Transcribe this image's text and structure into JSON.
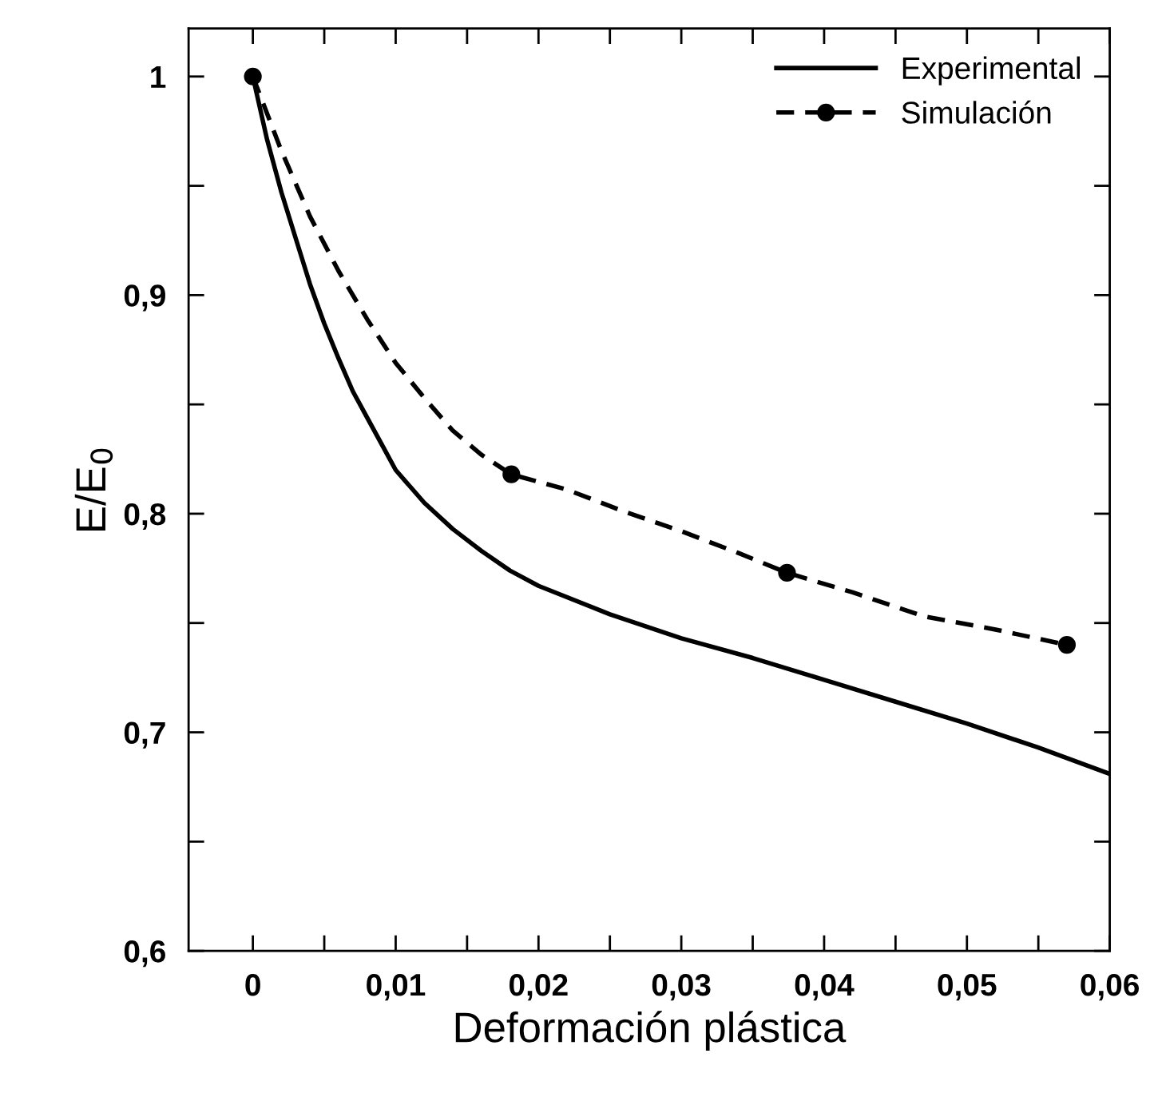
{
  "chart_data": {
    "type": "line",
    "xlabel": "Deformación plástica",
    "ylabel": "E/E$_{0}$",
    "xlim": [
      -0.0045,
      0.06
    ],
    "ylim": [
      0.6,
      1.022
    ],
    "xticks": [
      {
        "value": 0,
        "label": "0"
      },
      {
        "value": 0.005,
        "label": null
      },
      {
        "value": 0.01,
        "label": "0,01"
      },
      {
        "value": 0.015,
        "label": null
      },
      {
        "value": 0.02,
        "label": "0,02"
      },
      {
        "value": 0.025,
        "label": null
      },
      {
        "value": 0.03,
        "label": "0,03"
      },
      {
        "value": 0.035,
        "label": null
      },
      {
        "value": 0.04,
        "label": "0,04"
      },
      {
        "value": 0.045,
        "label": null
      },
      {
        "value": 0.05,
        "label": "0,05"
      },
      {
        "value": 0.055,
        "label": null
      },
      {
        "value": 0.06,
        "label": "0,06"
      }
    ],
    "yticks": [
      {
        "value": 0.6,
        "label": "0,6"
      },
      {
        "value": 0.65,
        "label": null
      },
      {
        "value": 0.7,
        "label": "0,7"
      },
      {
        "value": 0.75,
        "label": null
      },
      {
        "value": 0.8,
        "label": "0,8"
      },
      {
        "value": 0.85,
        "label": null
      },
      {
        "value": 0.9,
        "label": "0,9"
      },
      {
        "value": 0.95,
        "label": null
      },
      {
        "value": 1.0,
        "label": "1"
      }
    ],
    "grid": false,
    "legend": "top right",
    "series": [
      {
        "name": "Experimental",
        "color": "#000000",
        "line_style": "solid",
        "marker": "none",
        "x": [
          0,
          0.001,
          0.002,
          0.003,
          0.004,
          0.005,
          0.006,
          0.007,
          0.008,
          0.009,
          0.01,
          0.012,
          0.014,
          0.016,
          0.018,
          0.02,
          0.025,
          0.03,
          0.035,
          0.04,
          0.045,
          0.05,
          0.055,
          0.06
        ],
        "values": [
          1.0,
          0.971,
          0.947,
          0.926,
          0.905,
          0.887,
          0.871,
          0.856,
          0.844,
          0.832,
          0.82,
          0.805,
          0.793,
          0.783,
          0.774,
          0.767,
          0.754,
          0.743,
          0.734,
          0.724,
          0.714,
          0.704,
          0.693,
          0.681
        ]
      },
      {
        "name": "Simulación",
        "color": "#000000",
        "line_style": "dashed",
        "marker": "none",
        "x": [
          0,
          0.002,
          0.004,
          0.006,
          0.008,
          0.01,
          0.012,
          0.014,
          0.016,
          0.0181,
          0.022,
          0.026,
          0.03,
          0.034,
          0.0374,
          0.042,
          0.047,
          0.052,
          0.057
        ],
        "values": [
          1.0,
          0.966,
          0.936,
          0.911,
          0.889,
          0.869,
          0.853,
          0.838,
          0.827,
          0.818,
          0.811,
          0.801,
          0.792,
          0.782,
          0.773,
          0.764,
          0.753,
          0.747,
          0.74
        ]
      },
      {
        "type": "scatter",
        "color": "#000000",
        "marker": "circle",
        "x": [
          0,
          0.0181,
          0.0374,
          0.057
        ],
        "values": [
          1.0,
          0.818,
          0.773,
          0.74
        ]
      }
    ]
  }
}
